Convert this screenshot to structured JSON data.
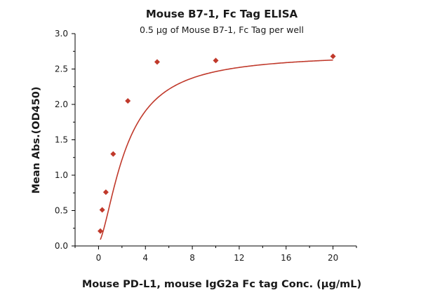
{
  "chart_data": {
    "type": "scatter",
    "title": "Mouse B7-1, Fc Tag ELISA",
    "subtitle": "0.5 µg of Mouse B7-1, Fc Tag per well",
    "xlabel": "Mouse PD-L1, mouse IgG2a Fc tag Conc. (µg/mL)",
    "ylabel": "Mean Abs.(OD450)",
    "xlim": [
      -2,
      22
    ],
    "ylim": [
      0,
      3.0
    ],
    "x_ticks": [
      "0",
      "4",
      "8",
      "12",
      "16",
      "20"
    ],
    "x_tick_values": [
      0,
      4,
      8,
      12,
      16,
      20
    ],
    "y_ticks": [
      "0.0",
      "0.5",
      "1.0",
      "1.5",
      "2.0",
      "2.5",
      "3.0"
    ],
    "y_tick_values": [
      0,
      0.5,
      1.0,
      1.5,
      2.0,
      2.5,
      3.0
    ],
    "grid": false,
    "legend": "none",
    "color": "#c0392b",
    "series": [
      {
        "marker": "diamond",
        "x": [
          0.156,
          0.313,
          0.625,
          1.25,
          2.5,
          5,
          10,
          20
        ],
        "y": [
          0.21,
          0.51,
          0.76,
          1.3,
          2.05,
          2.6,
          2.62,
          2.68
        ],
        "fit": "4PL"
      }
    ]
  }
}
